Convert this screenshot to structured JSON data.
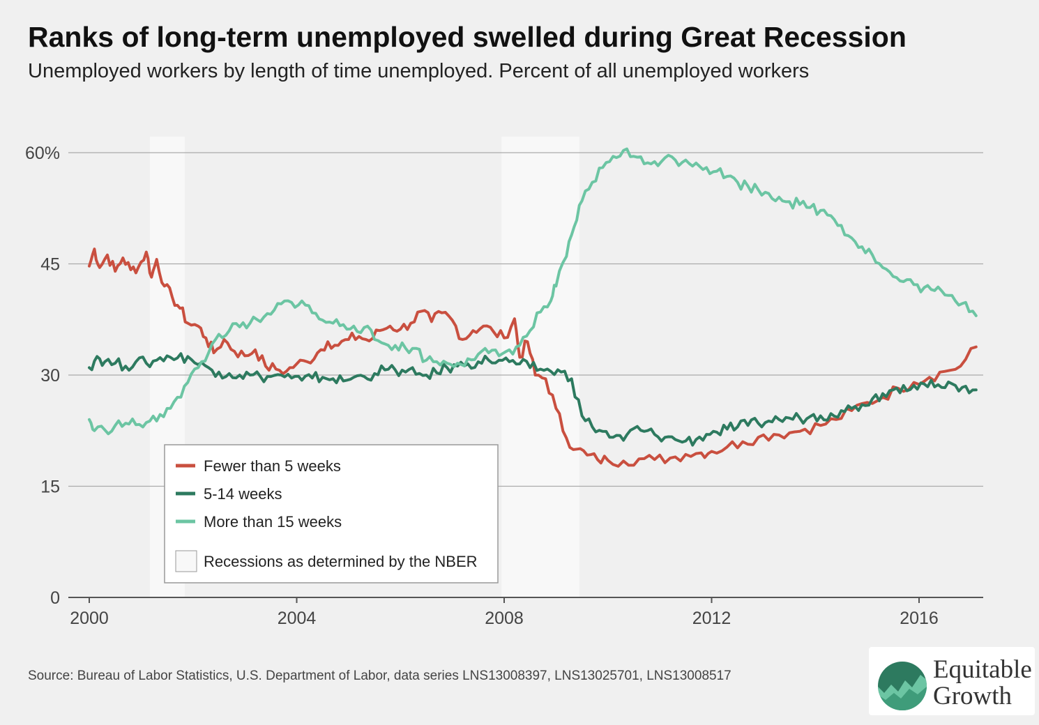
{
  "header": {
    "title": "Ranks of long-term unemployed swelled during Great Recession",
    "subtitle": "Unemployed workers by length of time unemployed. Percent of all unemployed workers"
  },
  "footer": {
    "source": "Source: Bureau of Labor Statistics, U.S. Department of Labor, data series LNS13008397, LNS13025701, LNS13008517"
  },
  "logo": {
    "line1": "Equitable",
    "line2": "Growth"
  },
  "chart_data": {
    "type": "line",
    "xlim": [
      2000,
      2017.2
    ],
    "ylim": [
      0,
      60
    ],
    "x_ticks": [
      2000,
      2004,
      2008,
      2012,
      2016
    ],
    "x_tick_labels": [
      "2000",
      "2004",
      "2008",
      "2012",
      "2016"
    ],
    "y_ticks": [
      0,
      15,
      30,
      45,
      60
    ],
    "y_tick_labels": [
      "0",
      "15",
      "30",
      "45",
      "60%"
    ],
    "grid": "horizontal",
    "recessions": [
      [
        2001.17,
        2001.84
      ],
      [
        2007.95,
        2009.45
      ]
    ],
    "legend": {
      "placement": "bottom-left",
      "recession_label": "Recessions as determined by the NBER"
    },
    "series": [
      {
        "name": "Fewer than 5 weeks",
        "color": "#c94f3f",
        "points": [
          [
            2000.0,
            44.7
          ],
          [
            2000.1,
            47.0
          ],
          [
            2000.2,
            44.5
          ],
          [
            2000.35,
            46.2
          ],
          [
            2000.5,
            44.0
          ],
          [
            2000.65,
            45.8
          ],
          [
            2000.8,
            44.2
          ],
          [
            2000.95,
            44.6
          ],
          [
            2001.1,
            46.6
          ],
          [
            2001.2,
            43.2
          ],
          [
            2001.3,
            45.6
          ],
          [
            2001.45,
            42.0
          ],
          [
            2001.6,
            40.5
          ],
          [
            2001.75,
            39.0
          ],
          [
            2001.9,
            37.0
          ],
          [
            2002.1,
            36.6
          ],
          [
            2002.25,
            35.0
          ],
          [
            2002.4,
            33.0
          ],
          [
            2002.6,
            34.8
          ],
          [
            2002.8,
            33.2
          ],
          [
            2003.0,
            32.6
          ],
          [
            2003.2,
            33.4
          ],
          [
            2003.4,
            31.2
          ],
          [
            2003.6,
            30.8
          ],
          [
            2003.8,
            30.5
          ],
          [
            2004.0,
            31.5
          ],
          [
            2004.2,
            31.8
          ],
          [
            2004.4,
            33.0
          ],
          [
            2004.6,
            34.5
          ],
          [
            2004.8,
            34.0
          ],
          [
            2005.0,
            34.8
          ],
          [
            2005.2,
            35.2
          ],
          [
            2005.4,
            34.6
          ],
          [
            2005.6,
            36.0
          ],
          [
            2005.8,
            36.6
          ],
          [
            2006.0,
            36.2
          ],
          [
            2006.2,
            37.0
          ],
          [
            2006.4,
            38.6
          ],
          [
            2006.6,
            37.2
          ],
          [
            2006.8,
            38.4
          ],
          [
            2007.0,
            37.4
          ],
          [
            2007.2,
            34.8
          ],
          [
            2007.4,
            36.0
          ],
          [
            2007.6,
            36.6
          ],
          [
            2007.8,
            35.8
          ],
          [
            2008.0,
            35.0
          ],
          [
            2008.2,
            37.6
          ],
          [
            2008.3,
            32.4
          ],
          [
            2008.45,
            34.5
          ],
          [
            2008.6,
            30.0
          ],
          [
            2008.8,
            29.5
          ],
          [
            2009.0,
            25.5
          ],
          [
            2009.2,
            21.5
          ],
          [
            2009.4,
            20.0
          ],
          [
            2009.6,
            19.2
          ],
          [
            2009.8,
            18.6
          ],
          [
            2010.0,
            18.5
          ],
          [
            2010.3,
            18.4
          ],
          [
            2010.6,
            18.7
          ],
          [
            2010.9,
            18.6
          ],
          [
            2011.2,
            18.8
          ],
          [
            2011.5,
            19.3
          ],
          [
            2011.8,
            19.5
          ],
          [
            2012.0,
            19.7
          ],
          [
            2012.3,
            20.3
          ],
          [
            2012.6,
            21.0
          ],
          [
            2012.9,
            21.6
          ],
          [
            2013.2,
            22.0
          ],
          [
            2013.5,
            22.2
          ],
          [
            2013.8,
            22.7
          ],
          [
            2014.1,
            23.2
          ],
          [
            2014.4,
            24.0
          ],
          [
            2014.7,
            25.2
          ],
          [
            2015.0,
            26.3
          ],
          [
            2015.3,
            27.0
          ],
          [
            2015.6,
            28.2
          ],
          [
            2015.9,
            29.0
          ],
          [
            2016.2,
            29.7
          ],
          [
            2016.5,
            30.5
          ],
          [
            2016.8,
            31.2
          ],
          [
            2017.1,
            33.8
          ]
        ]
      },
      {
        "name": "5-14 weeks",
        "color": "#2d7a5f",
        "points": [
          [
            2000.0,
            31.0
          ],
          [
            2000.15,
            32.5
          ],
          [
            2000.3,
            31.8
          ],
          [
            2000.5,
            31.6
          ],
          [
            2000.7,
            31.2
          ],
          [
            2000.9,
            31.8
          ],
          [
            2001.1,
            31.6
          ],
          [
            2001.3,
            32.0
          ],
          [
            2001.5,
            32.6
          ],
          [
            2001.7,
            32.3
          ],
          [
            2001.9,
            32.5
          ],
          [
            2002.1,
            31.4
          ],
          [
            2002.3,
            31.0
          ],
          [
            2002.5,
            30.4
          ],
          [
            2002.7,
            30.2
          ],
          [
            2002.9,
            30.0
          ],
          [
            2003.1,
            30.0
          ],
          [
            2003.3,
            29.8
          ],
          [
            2003.5,
            29.8
          ],
          [
            2003.7,
            30.0
          ],
          [
            2003.9,
            29.6
          ],
          [
            2004.1,
            29.3
          ],
          [
            2004.3,
            29.6
          ],
          [
            2004.5,
            29.7
          ],
          [
            2004.7,
            29.5
          ],
          [
            2004.9,
            29.2
          ],
          [
            2005.1,
            29.7
          ],
          [
            2005.3,
            29.8
          ],
          [
            2005.5,
            30.2
          ],
          [
            2005.7,
            30.7
          ],
          [
            2005.9,
            30.7
          ],
          [
            2006.1,
            30.4
          ],
          [
            2006.3,
            30.1
          ],
          [
            2006.5,
            30.0
          ],
          [
            2006.7,
            30.3
          ],
          [
            2006.9,
            31.0
          ],
          [
            2007.1,
            31.2
          ],
          [
            2007.3,
            31.5
          ],
          [
            2007.5,
            31.8
          ],
          [
            2007.7,
            32.0
          ],
          [
            2007.9,
            32.0
          ],
          [
            2008.1,
            31.8
          ],
          [
            2008.3,
            31.5
          ],
          [
            2008.5,
            31.0
          ],
          [
            2008.7,
            30.8
          ],
          [
            2008.9,
            30.5
          ],
          [
            2009.1,
            30.4
          ],
          [
            2009.3,
            29.5
          ],
          [
            2009.5,
            24.5
          ],
          [
            2009.7,
            23.0
          ],
          [
            2009.9,
            22.4
          ],
          [
            2010.1,
            21.6
          ],
          [
            2010.3,
            21.2
          ],
          [
            2010.5,
            22.8
          ],
          [
            2010.7,
            22.4
          ],
          [
            2010.9,
            22.0
          ],
          [
            2011.1,
            21.6
          ],
          [
            2011.3,
            21.3
          ],
          [
            2011.5,
            21.1
          ],
          [
            2011.7,
            21.3
          ],
          [
            2011.9,
            22.0
          ],
          [
            2012.1,
            22.3
          ],
          [
            2012.3,
            22.7
          ],
          [
            2012.5,
            23.0
          ],
          [
            2012.7,
            23.2
          ],
          [
            2012.9,
            23.5
          ],
          [
            2013.1,
            23.8
          ],
          [
            2013.3,
            24.0
          ],
          [
            2013.5,
            24.2
          ],
          [
            2013.7,
            24.2
          ],
          [
            2013.9,
            24.4
          ],
          [
            2014.1,
            24.5
          ],
          [
            2014.3,
            24.8
          ],
          [
            2014.5,
            25.2
          ],
          [
            2014.7,
            25.5
          ],
          [
            2014.9,
            26.0
          ],
          [
            2015.1,
            26.8
          ],
          [
            2015.3,
            27.5
          ],
          [
            2015.5,
            28.0
          ],
          [
            2015.7,
            28.6
          ],
          [
            2015.9,
            28.6
          ],
          [
            2016.1,
            28.8
          ],
          [
            2016.3,
            28.4
          ],
          [
            2016.5,
            28.3
          ],
          [
            2016.7,
            28.6
          ],
          [
            2016.9,
            28.5
          ],
          [
            2017.1,
            28.0
          ]
        ]
      },
      {
        "name": "More than 15 weeks",
        "color": "#6cc5a3",
        "points": [
          [
            2000.0,
            24.0
          ],
          [
            2000.1,
            22.5
          ],
          [
            2000.3,
            22.6
          ],
          [
            2000.5,
            23.2
          ],
          [
            2000.7,
            23.5
          ],
          [
            2000.9,
            23.3
          ],
          [
            2001.1,
            23.6
          ],
          [
            2001.3,
            23.8
          ],
          [
            2001.5,
            25.5
          ],
          [
            2001.7,
            27.0
          ],
          [
            2001.9,
            29.0
          ],
          [
            2002.1,
            31.0
          ],
          [
            2002.3,
            33.0
          ],
          [
            2002.5,
            35.5
          ],
          [
            2002.7,
            36.0
          ],
          [
            2002.9,
            36.5
          ],
          [
            2003.1,
            37.0
          ],
          [
            2003.3,
            37.2
          ],
          [
            2003.5,
            38.2
          ],
          [
            2003.7,
            39.6
          ],
          [
            2003.9,
            39.8
          ],
          [
            2004.1,
            40.0
          ],
          [
            2004.3,
            38.4
          ],
          [
            2004.5,
            37.4
          ],
          [
            2004.7,
            37.0
          ],
          [
            2004.9,
            36.8
          ],
          [
            2005.1,
            36.6
          ],
          [
            2005.3,
            36.4
          ],
          [
            2005.5,
            34.8
          ],
          [
            2005.7,
            34.2
          ],
          [
            2005.9,
            34.0
          ],
          [
            2006.1,
            33.6
          ],
          [
            2006.3,
            33.6
          ],
          [
            2006.5,
            32.0
          ],
          [
            2006.7,
            31.8
          ],
          [
            2006.9,
            31.6
          ],
          [
            2007.1,
            31.6
          ],
          [
            2007.3,
            32.2
          ],
          [
            2007.5,
            32.8
          ],
          [
            2007.7,
            33.0
          ],
          [
            2007.9,
            32.6
          ],
          [
            2008.1,
            33.4
          ],
          [
            2008.3,
            34.0
          ],
          [
            2008.5,
            36.0
          ],
          [
            2008.7,
            38.5
          ],
          [
            2008.9,
            40.0
          ],
          [
            2009.0,
            42.0
          ],
          [
            2009.2,
            46.0
          ],
          [
            2009.35,
            50.0
          ],
          [
            2009.5,
            53.5
          ],
          [
            2009.7,
            56.0
          ],
          [
            2009.9,
            58.0
          ],
          [
            2010.1,
            59.5
          ],
          [
            2010.3,
            60.3
          ],
          [
            2010.5,
            59.5
          ],
          [
            2010.7,
            58.5
          ],
          [
            2010.9,
            58.8
          ],
          [
            2011.1,
            59.3
          ],
          [
            2011.3,
            59.0
          ],
          [
            2011.5,
            59.0
          ],
          [
            2011.7,
            58.6
          ],
          [
            2011.9,
            58.0
          ],
          [
            2012.1,
            57.5
          ],
          [
            2012.3,
            56.8
          ],
          [
            2012.5,
            56.0
          ],
          [
            2012.7,
            55.5
          ],
          [
            2012.9,
            55.0
          ],
          [
            2013.1,
            54.5
          ],
          [
            2013.3,
            54.0
          ],
          [
            2013.5,
            53.4
          ],
          [
            2013.7,
            53.0
          ],
          [
            2013.9,
            52.6
          ],
          [
            2014.1,
            52.2
          ],
          [
            2014.3,
            51.5
          ],
          [
            2014.5,
            50.2
          ],
          [
            2014.7,
            48.5
          ],
          [
            2014.9,
            47.3
          ],
          [
            2015.1,
            46.2
          ],
          [
            2015.3,
            44.5
          ],
          [
            2015.5,
            43.3
          ],
          [
            2015.7,
            42.6
          ],
          [
            2015.9,
            42.2
          ],
          [
            2016.1,
            41.8
          ],
          [
            2016.3,
            41.4
          ],
          [
            2016.5,
            40.8
          ],
          [
            2016.7,
            40.0
          ],
          [
            2016.9,
            39.8
          ],
          [
            2017.1,
            38.0
          ]
        ]
      }
    ]
  }
}
